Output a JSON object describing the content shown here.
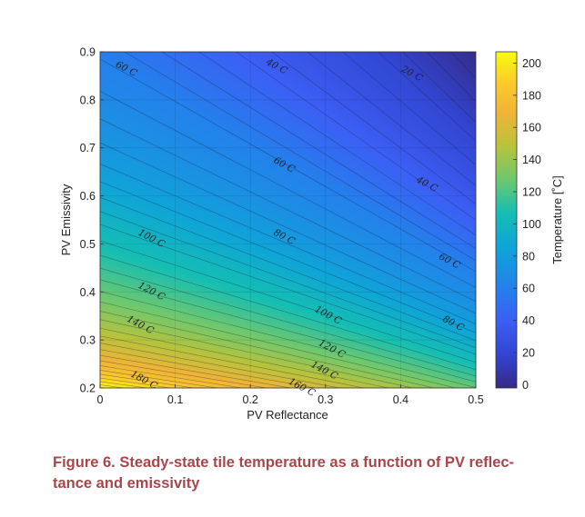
{
  "chart_data": {
    "type": "heatmap",
    "subtype": "filled-contour",
    "xlabel": "PV Reflectance",
    "ylabel": "PV Emissivity",
    "xlim": [
      0,
      0.5
    ],
    "ylim": [
      0.2,
      0.9
    ],
    "xticks": [
      "0",
      "0.1",
      "0.2",
      "0.3",
      "0.4",
      "0.5"
    ],
    "yticks": [
      "0.2",
      "0.3",
      "0.4",
      "0.5",
      "0.6",
      "0.7",
      "0.8",
      "0.9"
    ],
    "grid": true,
    "colorbar": {
      "label": "Temperature [˚C]",
      "range": [
        -2,
        207
      ],
      "ticks": [
        "0",
        "20",
        "40",
        "60",
        "80",
        "100",
        "120",
        "140",
        "160",
        "180",
        "200"
      ],
      "colormap": "parula"
    },
    "field_model": {
      "variable": "(1 - reflectance) / emissivity",
      "u_knots": [
        0.5,
        0.556,
        0.7,
        0.91,
        1.13,
        1.5,
        1.85,
        2.35,
        2.92,
        3.57,
        4.22,
        5.0
      ],
      "T_knots": [
        -2,
        0,
        20,
        40,
        60,
        80,
        100,
        120,
        140,
        160,
        180,
        205
      ]
    },
    "contour_step": 5,
    "contour_labels": [
      {
        "text": "60 C",
        "x": 0.02,
        "y": 0.87
      },
      {
        "text": "40 C",
        "x": 0.22,
        "y": 0.875
      },
      {
        "text": "20 C",
        "x": 0.4,
        "y": 0.86
      },
      {
        "text": "60 C",
        "x": 0.23,
        "y": 0.67
      },
      {
        "text": "40 C",
        "x": 0.42,
        "y": 0.63
      },
      {
        "text": "100 C",
        "x": 0.05,
        "y": 0.52
      },
      {
        "text": "80 C",
        "x": 0.23,
        "y": 0.52
      },
      {
        "text": "60 C",
        "x": 0.45,
        "y": 0.47
      },
      {
        "text": "120 C",
        "x": 0.05,
        "y": 0.41
      },
      {
        "text": "100 C",
        "x": 0.285,
        "y": 0.36
      },
      {
        "text": "80 C",
        "x": 0.455,
        "y": 0.34
      },
      {
        "text": "140 C",
        "x": 0.035,
        "y": 0.34
      },
      {
        "text": "120 C",
        "x": 0.29,
        "y": 0.29
      },
      {
        "text": "140 C",
        "x": 0.28,
        "y": 0.245
      },
      {
        "text": "180 C",
        "x": 0.04,
        "y": 0.225
      },
      {
        "text": "160 C",
        "x": 0.25,
        "y": 0.21
      }
    ]
  },
  "caption": {
    "lines": [
      "Figure 6. Steady-state tile temperature as a function of PV reflec-",
      "tance and emissivity"
    ]
  },
  "colors": {
    "caption": "#a8464a",
    "axis": "#222222"
  }
}
